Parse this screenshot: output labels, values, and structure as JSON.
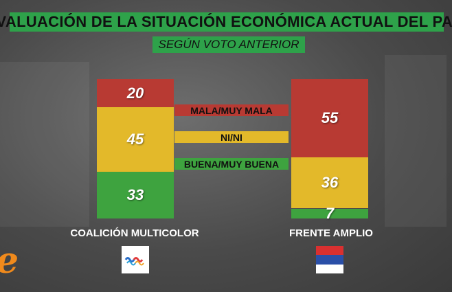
{
  "title": "EVALUACIÓN DE LA SITUACIÓN ECONÓMICA ACTUAL DEL PAÍS",
  "subtitle": "SEGÚN VOTO ANTERIOR",
  "brand_letter": "e",
  "colors": {
    "mala": "#b83a33",
    "ni": "#e3b92a",
    "buena": "#3ea33f",
    "header": "#2ea24a"
  },
  "legend": [
    {
      "key": "mala",
      "label": "MALA/MUY MALA"
    },
    {
      "key": "ni",
      "label": "NI/NI"
    },
    {
      "key": "buena",
      "label": "BUENA/MUY BUENA"
    }
  ],
  "chart_data": {
    "type": "bar",
    "stacked": true,
    "title": "EVALUACIÓN DE LA SITUACIÓN ECONÓMICA ACTUAL DEL PAÍS",
    "subtitle": "SEGÚN VOTO ANTERIOR",
    "categories": [
      "COALICIÓN MULTICOLOR",
      "FRENTE AMPLIO"
    ],
    "series": [
      {
        "name": "MALA/MUY MALA",
        "values": [
          20,
          55
        ]
      },
      {
        "name": "NI/NI",
        "values": [
          45,
          36
        ]
      },
      {
        "name": "BUENA/MUY BUENA",
        "values": [
          33,
          7
        ]
      }
    ],
    "value_labels": [
      [
        "20",
        "45",
        "33"
      ],
      [
        "55",
        "36",
        "7"
      ]
    ],
    "ylim": [
      0,
      100
    ]
  },
  "parties": [
    {
      "name": "COALICIÓN MULTICOLOR",
      "logo": "multicolor-wave-icon"
    },
    {
      "name": "FRENTE AMPLIO",
      "logo": "frente-amplio-flag-icon"
    }
  ]
}
